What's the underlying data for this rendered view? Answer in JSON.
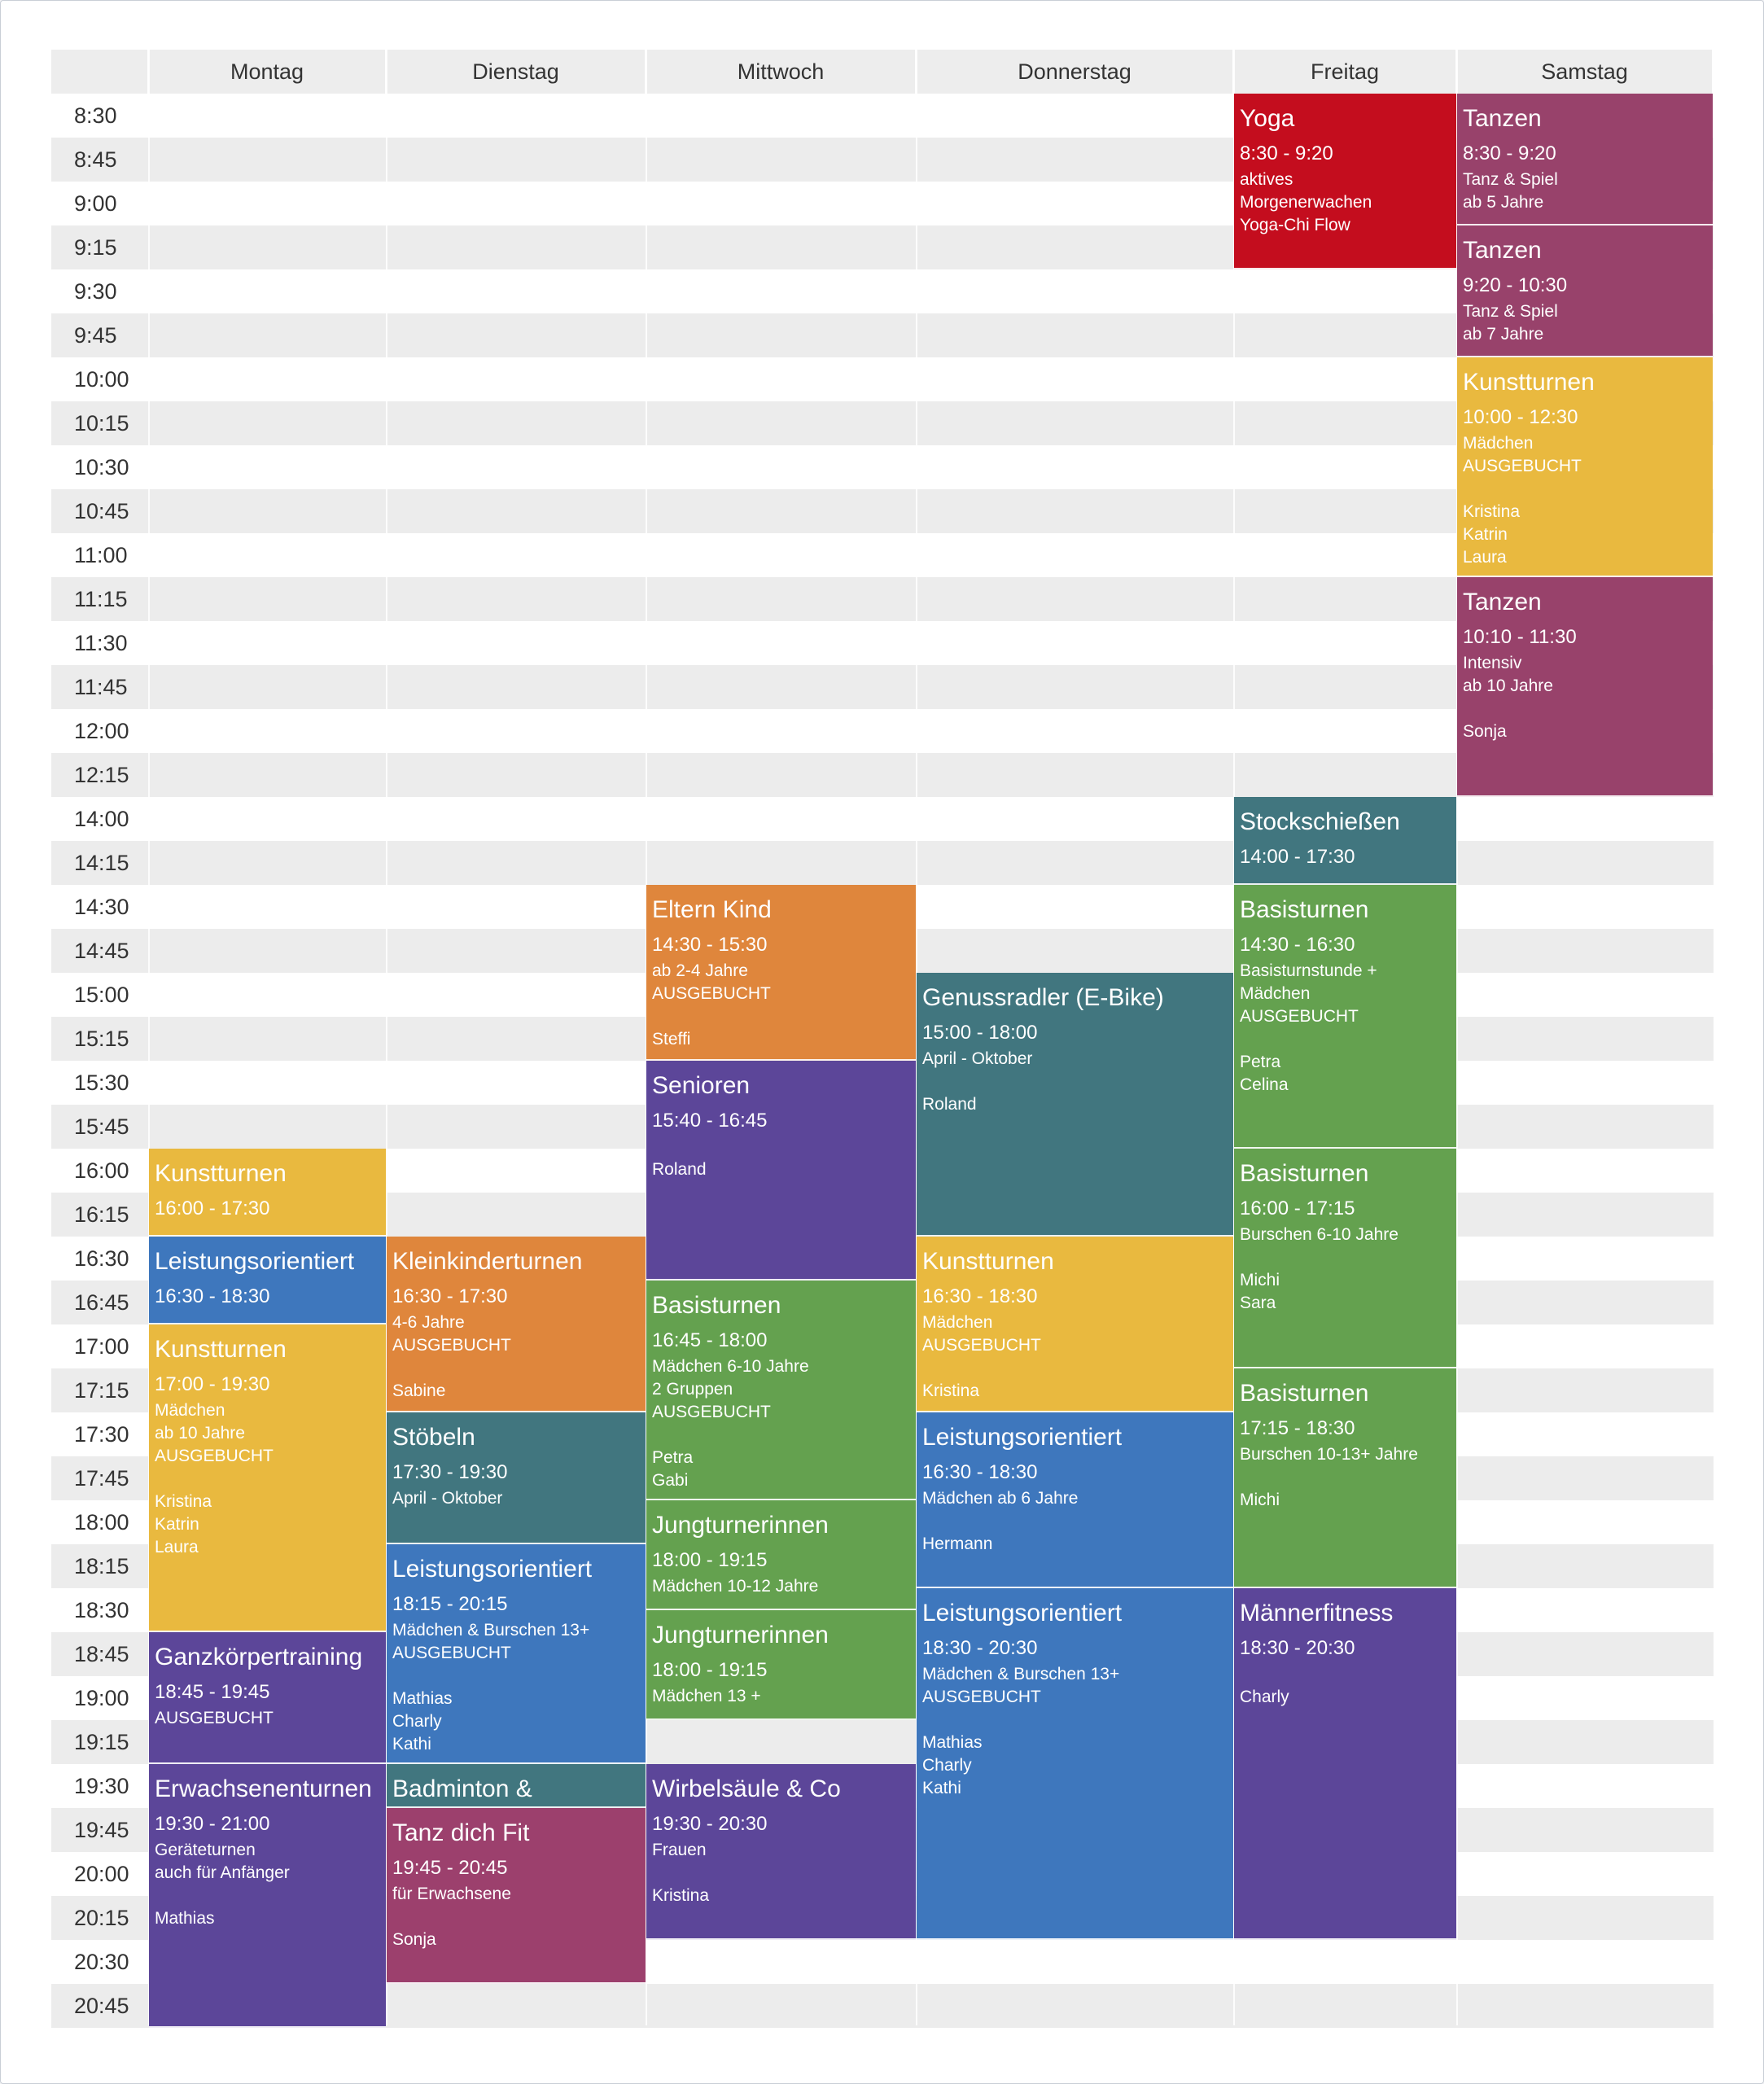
{
  "days": [
    "Montag",
    "Dienstag",
    "Mittwoch",
    "Donnerstag",
    "Freitag",
    "Samstag"
  ],
  "times": [
    "8:30",
    "8:45",
    "9:00",
    "9:15",
    "9:30",
    "9:45",
    "10:00",
    "10:15",
    "10:30",
    "10:45",
    "11:00",
    "11:15",
    "11:30",
    "11:45",
    "12:00",
    "12:15",
    "14:00",
    "14:15",
    "14:30",
    "14:45",
    "15:00",
    "15:15",
    "15:30",
    "15:45",
    "16:00",
    "16:15",
    "16:30",
    "16:45",
    "17:00",
    "17:15",
    "17:30",
    "17:45",
    "18:00",
    "18:15",
    "18:30",
    "18:45",
    "19:00",
    "19:15",
    "19:30",
    "19:45",
    "20:00",
    "20:15",
    "20:30",
    "20:45"
  ],
  "colors": {
    "red": "#c40d1e",
    "magenta": "#98426b",
    "yellow": "#e9b93f",
    "orange": "#df863c",
    "teal": "#41767f",
    "green": "#64a14f",
    "blue": "#3e77bd",
    "purple": "#5c4699",
    "rose": "#9c406d"
  },
  "events": [
    {
      "day": 0,
      "start": 24,
      "end": 26,
      "color": "yellow",
      "title": "Kunstturnen",
      "time": "16:00 - 17:30",
      "lines": []
    },
    {
      "day": 0,
      "start": 26,
      "end": 28,
      "color": "blue",
      "title": "Leistungsorientiert",
      "time": "16:30 - 18:30",
      "lines": []
    },
    {
      "day": 0,
      "start": 28,
      "end": 35,
      "color": "yellow",
      "title": "Kunstturnen",
      "time": "17:00 - 19:30",
      "lines": [
        "Mädchen",
        "ab 10 Jahre",
        "AUSGEBUCHT",
        "",
        "Kristina",
        "Katrin",
        "Laura"
      ]
    },
    {
      "day": 0,
      "start": 35,
      "end": 38,
      "color": "purple",
      "title": "Ganzkörpertraining",
      "time": "18:45 - 19:45",
      "lines": [
        "AUSGEBUCHT"
      ]
    },
    {
      "day": 0,
      "start": 38,
      "end": 44,
      "color": "purple",
      "title": "Erwachsenenturnen",
      "time": "19:30 - 21:00",
      "lines": [
        "Geräteturnen",
        "auch für Anfänger",
        "",
        "Mathias"
      ]
    },
    {
      "day": 1,
      "start": 26,
      "end": 30,
      "color": "orange",
      "title": "Kleinkinderturnen",
      "time": "16:30 - 17:30",
      "lines": [
        "4-6 Jahre",
        "AUSGEBUCHT",
        "",
        "Sabine"
      ]
    },
    {
      "day": 1,
      "start": 30,
      "end": 33,
      "color": "teal",
      "title": "Stöbeln",
      "time": "17:30 - 19:30",
      "lines": [
        "April - Oktober"
      ]
    },
    {
      "day": 1,
      "start": 33,
      "end": 38,
      "color": "blue",
      "title": "Leistungsorientiert",
      "time": "18:15 - 20:15",
      "lines": [
        "Mädchen & Burschen 13+",
        "AUSGEBUCHT",
        "",
        "Mathias",
        "Charly",
        "Kathi"
      ]
    },
    {
      "day": 1,
      "start": 38,
      "end": 39,
      "color": "teal",
      "title": "Badminton &",
      "time": "",
      "lines": []
    },
    {
      "day": 1,
      "start": 39,
      "end": 43,
      "color": "rose",
      "title": "Tanz dich Fit",
      "time": "19:45 - 20:45",
      "lines": [
        "für Erwachsene",
        "",
        "Sonja"
      ]
    },
    {
      "day": 2,
      "start": 18,
      "end": 22,
      "color": "orange",
      "title": "Eltern Kind",
      "time": "14:30 - 15:30",
      "lines": [
        "ab 2-4 Jahre",
        "AUSGEBUCHT",
        "",
        "Steffi"
      ]
    },
    {
      "day": 2,
      "start": 22,
      "end": 27,
      "color": "purple",
      "title": "Senioren",
      "time": "15:40 - 16:45",
      "lines": [
        "",
        "Roland"
      ]
    },
    {
      "day": 2,
      "start": 27,
      "end": 32,
      "color": "green",
      "title": "Basisturnen",
      "time": "16:45 - 18:00",
      "lines": [
        "Mädchen 6-10 Jahre",
        "2 Gruppen",
        "AUSGEBUCHT",
        "",
        "Petra",
        "Gabi"
      ]
    },
    {
      "day": 2,
      "start": 32,
      "end": 34.5,
      "color": "green",
      "title": "Jungturnerinnen",
      "time": "18:00 - 19:15",
      "lines": [
        "Mädchen 10-12 Jahre"
      ]
    },
    {
      "day": 2,
      "start": 34.5,
      "end": 37,
      "color": "green",
      "title": "Jungturnerinnen",
      "time": "18:00 - 19:15",
      "lines": [
        "Mädchen 13 +"
      ]
    },
    {
      "day": 2,
      "start": 38,
      "end": 42,
      "color": "purple",
      "title": "Wirbelsäule & Co",
      "time": "19:30 - 20:30",
      "lines": [
        "Frauen",
        "",
        "Kristina"
      ]
    },
    {
      "day": 3,
      "start": 20,
      "end": 26,
      "color": "teal",
      "title": "Genussradler (E-Bike)",
      "time": "15:00 - 18:00",
      "lines": [
        "April - Oktober",
        "",
        "Roland"
      ]
    },
    {
      "day": 3,
      "start": 26,
      "end": 30,
      "color": "yellow",
      "title": "Kunstturnen",
      "time": "16:30 - 18:30",
      "lines": [
        "Mädchen",
        "AUSGEBUCHT",
        "",
        "Kristina"
      ]
    },
    {
      "day": 3,
      "start": 30,
      "end": 34,
      "color": "blue",
      "title": "Leistungsorientiert",
      "time": "16:30 - 18:30",
      "lines": [
        "Mädchen ab 6 Jahre",
        "",
        "Hermann"
      ]
    },
    {
      "day": 3,
      "start": 34,
      "end": 42,
      "color": "blue",
      "title": "Leistungsorientiert",
      "time": "18:30 - 20:30",
      "lines": [
        "Mädchen & Burschen 13+",
        "AUSGEBUCHT",
        "",
        "Mathias",
        "Charly",
        "Kathi"
      ]
    },
    {
      "day": 4,
      "start": 0,
      "end": 4,
      "color": "red",
      "title": "Yoga",
      "time": "8:30 - 9:20",
      "lines": [
        "aktives",
        "Morgenerwachen",
        "Yoga-Chi Flow"
      ]
    },
    {
      "day": 4,
      "start": 16,
      "end": 18,
      "color": "teal",
      "title": "Stockschießen",
      "time": "14:00 - 17:30",
      "lines": []
    },
    {
      "day": 4,
      "start": 18,
      "end": 24,
      "color": "green",
      "title": "Basisturnen",
      "time": "14:30 - 16:30",
      "lines": [
        "Basisturnstunde +",
        "Mädchen",
        "AUSGEBUCHT",
        "",
        "Petra",
        "Celina"
      ]
    },
    {
      "day": 4,
      "start": 24,
      "end": 29,
      "color": "green",
      "title": "Basisturnen",
      "time": "16:00 - 17:15",
      "lines": [
        "Burschen 6-10 Jahre",
        "",
        "Michi",
        "Sara"
      ]
    },
    {
      "day": 4,
      "start": 29,
      "end": 34,
      "color": "green",
      "title": "Basisturnen",
      "time": "17:15 - 18:30",
      "lines": [
        "Burschen 10-13+ Jahre",
        "",
        "Michi"
      ]
    },
    {
      "day": 4,
      "start": 34,
      "end": 42,
      "color": "purple",
      "title": "Männerfitness",
      "time": "18:30 - 20:30",
      "lines": [
        "",
        "Charly"
      ]
    },
    {
      "day": 5,
      "start": 0,
      "end": 3,
      "color": "magenta",
      "title": "Tanzen",
      "time": "8:30 - 9:20",
      "lines": [
        "Tanz & Spiel",
        "ab 5 Jahre"
      ]
    },
    {
      "day": 5,
      "start": 3,
      "end": 6,
      "color": "magenta",
      "title": "Tanzen",
      "time": "9:20 - 10:30",
      "lines": [
        "Tanz & Spiel",
        "ab 7 Jahre"
      ]
    },
    {
      "day": 5,
      "start": 6,
      "end": 11,
      "color": "yellow",
      "title": "Kunstturnen",
      "time": "10:00 - 12:30",
      "lines": [
        "Mädchen",
        "AUSGEBUCHT",
        "",
        "Kristina",
        "Katrin",
        "Laura"
      ]
    },
    {
      "day": 5,
      "start": 11,
      "end": 16,
      "color": "magenta",
      "title": "Tanzen",
      "time": "10:10 - 11:30",
      "lines": [
        "Intensiv",
        "ab 10 Jahre",
        "",
        "Sonja"
      ]
    }
  ]
}
